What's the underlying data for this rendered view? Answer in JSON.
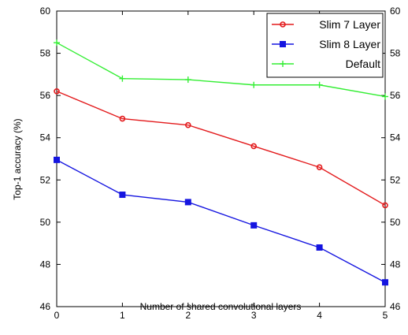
{
  "chart_data": {
    "type": "line",
    "title": "",
    "xlabel": "Number of shared convolutional layers",
    "ylabel": "Top-1 accuracy (%)",
    "x": [
      0,
      1,
      2,
      3,
      4,
      5
    ],
    "xlim": [
      0,
      5
    ],
    "ylim": [
      46,
      60
    ],
    "xticks": [
      "0",
      "1",
      "2",
      "3",
      "4",
      "5"
    ],
    "yticks": [
      "46",
      "48",
      "50",
      "52",
      "54",
      "56",
      "58",
      "60"
    ],
    "right_axis_ticks": true,
    "grid": false,
    "legend_position": "top-right",
    "series": [
      {
        "name": "Slim 7 Layer",
        "color": "#e31a1c",
        "marker": "circle",
        "values": [
          56.2,
          54.9,
          54.6,
          53.6,
          52.6,
          50.8
        ]
      },
      {
        "name": "Slim 8 Layer",
        "color": "#1515e0",
        "marker": "square",
        "values": [
          52.95,
          51.3,
          50.95,
          49.85,
          48.8,
          47.15
        ]
      },
      {
        "name": "Default",
        "color": "#33ee33",
        "marker": "plus",
        "values": [
          58.5,
          56.8,
          56.75,
          56.5,
          56.5,
          55.95
        ]
      }
    ]
  }
}
